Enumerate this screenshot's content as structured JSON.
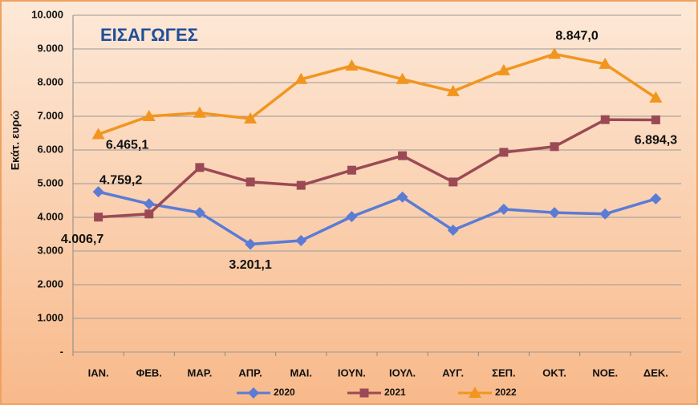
{
  "chart_data": {
    "type": "line",
    "title": "ΕΙΣΑΓΩΓΕΣ",
    "y_label": "Εκάτ. ευρώ",
    "categories": [
      "ΙΑΝ.",
      "ΦΕΒ.",
      "ΜΑΡ.",
      "ΑΠΡ.",
      "ΜΑΙ.",
      "ΙΟΥΝ.",
      "ΙΟΥΛ.",
      "ΑΥΓ.",
      "ΣΕΠ.",
      "ΟΚΤ.",
      "ΝΟΕ.",
      "ΔΕΚ."
    ],
    "series": [
      {
        "name": "2020",
        "color": "#5b7bd5",
        "marker": "diamond",
        "values": [
          4759.2,
          4400,
          4140,
          3201.1,
          3310,
          4020,
          4600,
          3620,
          4240,
          4140,
          4100,
          4550
        ],
        "value_labels": [
          "4.759,2",
          null,
          null,
          "3.201,1",
          null,
          null,
          null,
          null,
          null,
          null,
          null,
          null
        ]
      },
      {
        "name": "2021",
        "color": "#9b4a55",
        "marker": "square",
        "values": [
          4006.7,
          4100,
          5480,
          5050,
          4950,
          5400,
          5830,
          5050,
          5930,
          6100,
          6900,
          6894.3
        ],
        "value_labels": [
          "4.006,7",
          null,
          null,
          null,
          null,
          null,
          null,
          null,
          null,
          null,
          null,
          "6.894,3"
        ]
      },
      {
        "name": "2022",
        "color": "#f2951f",
        "marker": "triangle",
        "values": [
          6465.1,
          7000,
          7100,
          6930,
          8100,
          8500,
          8100,
          7740,
          8360,
          8847.0,
          8550,
          7550
        ],
        "value_labels": [
          "6.465,1",
          null,
          null,
          null,
          null,
          null,
          null,
          null,
          null,
          "8.847,0",
          null,
          null
        ]
      }
    ],
    "ylim": [
      0,
      10000
    ],
    "yticks": [
      {
        "value": 0,
        "label": "-"
      },
      {
        "value": 1000,
        "label": "1.000"
      },
      {
        "value": 2000,
        "label": "2.000"
      },
      {
        "value": 3000,
        "label": "3.000"
      },
      {
        "value": 4000,
        "label": "4.000"
      },
      {
        "value": 5000,
        "label": "5.000"
      },
      {
        "value": 6000,
        "label": "6.000"
      },
      {
        "value": 7000,
        "label": "7.000"
      },
      {
        "value": 8000,
        "label": "8.000"
      },
      {
        "value": 9000,
        "label": "9.000"
      },
      {
        "value": 10000,
        "label": "10.000"
      }
    ],
    "grid": true,
    "legend": "bottom"
  }
}
